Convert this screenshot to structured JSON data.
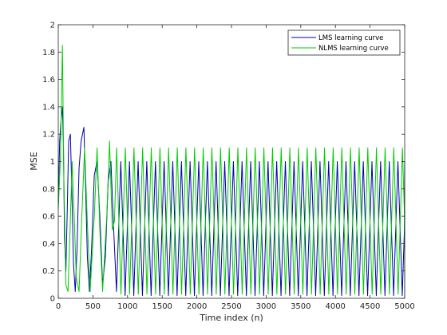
{
  "chart_data": {
    "type": "line",
    "title": "",
    "xlabel": "Time index (n)",
    "ylabel": "MSE",
    "xlim": [
      0,
      5000
    ],
    "ylim": [
      0,
      2
    ],
    "xticks": [
      "0",
      "500",
      "1000",
      "1500",
      "2000",
      "2500",
      "3000",
      "3500",
      "4000",
      "4500",
      "5000"
    ],
    "yticks": [
      "0",
      "0.2",
      "0.4",
      "0.6",
      "0.8",
      "1",
      "1.2",
      "1.4",
      "1.6",
      "1.8",
      "2"
    ],
    "grid": false,
    "legend_position": "top-right",
    "series": [
      {
        "name": "LMS learning curve",
        "color": "#0000b0",
        "approx_oscillation_period": 125,
        "points": [
          [
            0,
            0.7
          ],
          [
            20,
            1.15
          ],
          [
            40,
            1.3
          ],
          [
            60,
            1.4
          ],
          [
            75,
            1.1
          ],
          [
            90,
            0.45
          ],
          [
            110,
            0.2
          ],
          [
            130,
            0.65
          ],
          [
            150,
            1.15
          ],
          [
            175,
            1.2
          ],
          [
            200,
            0.7
          ],
          [
            220,
            0.25
          ],
          [
            245,
            0.05
          ],
          [
            270,
            0.35
          ],
          [
            300,
            0.95
          ],
          [
            330,
            1.15
          ],
          [
            350,
            1.2
          ],
          [
            370,
            1.25
          ],
          [
            395,
            0.8
          ],
          [
            420,
            0.3
          ],
          [
            450,
            0.05
          ],
          [
            480,
            0.35
          ],
          [
            520,
            0.9
          ],
          [
            560,
            1.0
          ],
          [
            600,
            0.6
          ],
          [
            640,
            0.1
          ],
          [
            680,
            0.3
          ],
          [
            720,
            0.85
          ],
          [
            760,
            1.0
          ],
          [
            800,
            0.5
          ],
          [
            840,
            0.05
          ]
        ],
        "peak_level": 1.0,
        "trough_level": 0.02
      },
      {
        "name": "NLMS learning curve",
        "color": "#00cc00",
        "approx_oscillation_period": 125,
        "points": [
          [
            0,
            0.65
          ],
          [
            30,
            1.0
          ],
          [
            60,
            1.85
          ],
          [
            80,
            0.9
          ],
          [
            110,
            0.1
          ],
          [
            140,
            0.05
          ],
          [
            170,
            0.5
          ],
          [
            200,
            1.0
          ],
          [
            230,
            0.6
          ],
          [
            260,
            0.15
          ],
          [
            300,
            0.05
          ],
          [
            340,
            0.6
          ],
          [
            380,
            1.1
          ],
          [
            420,
            0.55
          ],
          [
            460,
            0.05
          ],
          [
            520,
            0.6
          ],
          [
            560,
            1.1
          ],
          [
            600,
            0.5
          ],
          [
            640,
            0.05
          ],
          [
            700,
            0.6
          ],
          [
            740,
            1.15
          ],
          [
            780,
            0.5
          ]
        ],
        "peak_level": 1.1,
        "trough_level": 0.03
      }
    ]
  }
}
